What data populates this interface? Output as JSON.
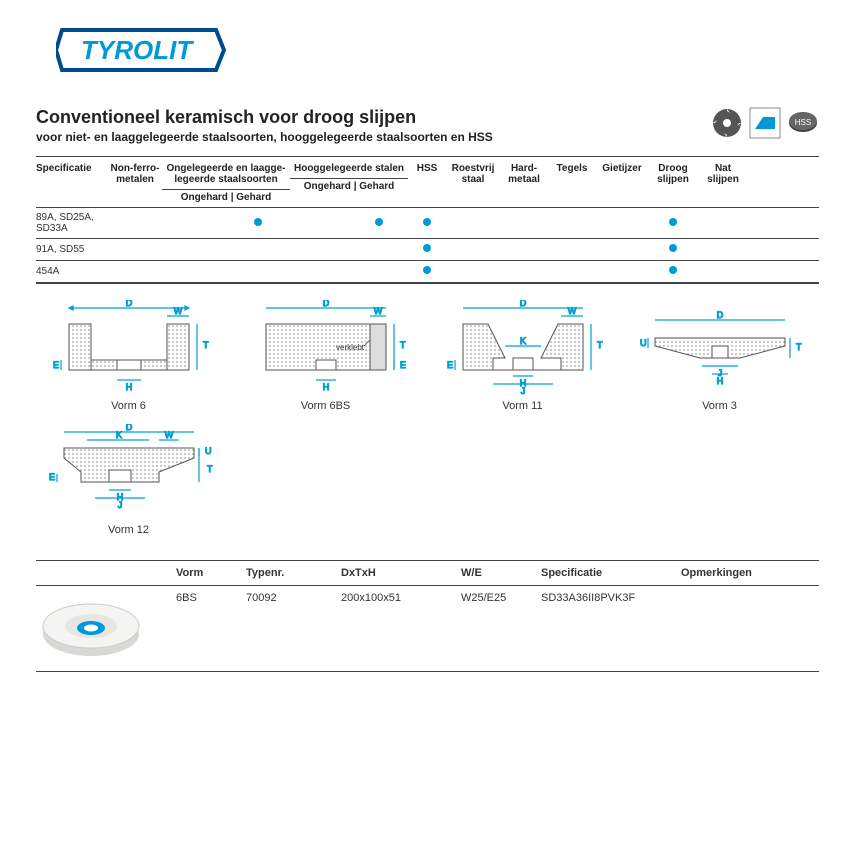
{
  "brand": "TYROLIT",
  "title": "Conventioneel keramisch voor droog slijpen",
  "subtitle": "voor niet- en laaggelegeerde staalsoorten, hooggelegeerde staalsoorten en HSS",
  "colors": {
    "brand_blue": "#0099d8",
    "brand_frame": "#004b8d",
    "dot": "#0099d8",
    "rule": "#444444",
    "diagram_line": "#00a0d2",
    "hatch": "#b8b8b8"
  },
  "matrix": {
    "headers": {
      "spec": "Specificatie",
      "nonferro": "Non-ferro-metalen",
      "low_alloy": "Ongelegeerde en laagge-legeerde staalsoorten",
      "high_alloy": "Hooggelegeerde stalen",
      "hss": "HSS",
      "rvs": "Roestvrij staal",
      "hardmetal": "Hard-metaal",
      "tegels": "Tegels",
      "gietijzer": "Gietijzer",
      "droog": "Droog slijpen",
      "nat": "Nat slijpen",
      "sub_ongehard": "Ongehard",
      "sub_gehard": "Gehard"
    },
    "rows": [
      {
        "spec": "89A, SD25A, SD33A",
        "dots": {
          "low_gehard": true,
          "high_gehard": true,
          "hss": true,
          "droog": true
        }
      },
      {
        "spec": "91A, SD55",
        "dots": {
          "hss": true,
          "droog": true
        }
      },
      {
        "spec": "454A",
        "dots": {
          "hss": true,
          "droog": true
        }
      }
    ]
  },
  "shapes": {
    "labels": [
      "Vorm 6",
      "Vorm 6BS",
      "Vorm 11",
      "Vorm 3",
      "Vorm 12"
    ],
    "verklebt": "verklebt"
  },
  "product_table": {
    "headers": {
      "vorm": "Vorm",
      "typenr": "Typenr.",
      "dxtxh": "DxTxH",
      "we": "W/E",
      "spec": "Specificatie",
      "opm": "Opmerkingen"
    },
    "row": {
      "vorm": "6BS",
      "typenr": "70092",
      "dxtxh": "200x100x51",
      "we": "W25/E25",
      "spec": "SD33A36II8PVK3F",
      "opm": ""
    }
  }
}
